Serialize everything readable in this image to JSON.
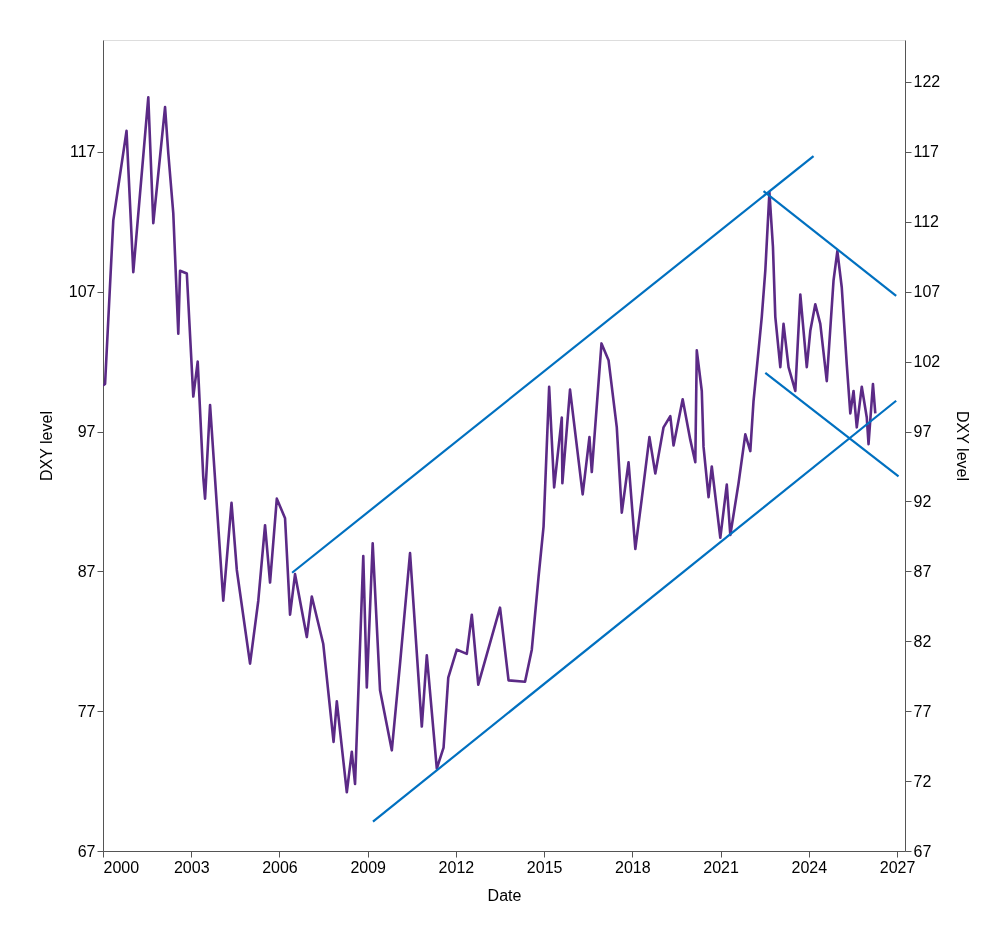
{
  "chart_data": {
    "type": "line",
    "xlabel": "Date",
    "ylabel": "DXY level",
    "y2label": "DXY level",
    "xlim": [
      2000,
      2027.27
    ],
    "xticks": [
      2000,
      2003,
      2006,
      2009,
      2012,
      2015,
      2018,
      2021,
      2024,
      2027
    ],
    "ylim": [
      67,
      125
    ],
    "yticks": [
      67,
      77,
      87,
      97,
      107,
      117
    ],
    "y2lim": [
      67,
      125
    ],
    "y2ticks": [
      67,
      72,
      77,
      82,
      87,
      92,
      97,
      102,
      107,
      112,
      117,
      122
    ],
    "grid": false,
    "legend": false,
    "marker": "none",
    "line_style": "solid",
    "series": [
      {
        "color": "#5b2a86",
        "x": [
          2000.0,
          2000.07,
          2000.35,
          2000.8,
          2001.03,
          2001.54,
          2001.71,
          2002.11,
          2002.22,
          2002.39,
          2002.56,
          2002.62,
          2002.85,
          2003.07,
          2003.22,
          2003.41,
          2003.47,
          2003.64,
          2004.09,
          2004.37,
          2004.55,
          2005.0,
          2005.28,
          2005.51,
          2005.68,
          2005.91,
          2006.19,
          2006.36,
          2006.53,
          2006.93,
          2007.1,
          2007.49,
          2007.84,
          2007.95,
          2008.29,
          2008.46,
          2008.57,
          2008.85,
          2008.97,
          2009.17,
          2009.42,
          2009.82,
          2010.1,
          2010.44,
          2010.84,
          2011.01,
          2011.35,
          2011.58,
          2011.74,
          2012.03,
          2012.37,
          2012.54,
          2012.76,
          2013.5,
          2013.79,
          2014.35,
          2014.58,
          2014.81,
          2014.98,
          2015.17,
          2015.34,
          2015.6,
          2015.62,
          2015.88,
          2016.31,
          2016.54,
          2016.62,
          2016.95,
          2017.19,
          2017.47,
          2017.64,
          2017.87,
          2018.1,
          2018.32,
          2018.58,
          2018.78,
          2019.06,
          2019.29,
          2019.4,
          2019.71,
          2019.97,
          2020.14,
          2020.19,
          2020.36,
          2020.42,
          2020.59,
          2020.7,
          2020.99,
          2021.21,
          2021.33,
          2021.61,
          2021.84,
          2022.01,
          2022.12,
          2022.29,
          2022.4,
          2022.52,
          2022.66,
          2022.78,
          2022.86,
          2023.03,
          2023.14,
          2023.31,
          2023.54,
          2023.71,
          2023.93,
          2024.05,
          2024.22,
          2024.39,
          2024.61,
          2024.84,
          2024.97,
          2025.12,
          2025.29,
          2025.41,
          2025.52,
          2025.63,
          2025.8,
          2025.97,
          2026.03,
          2026.18,
          2026.26
        ],
        "values": [
          100.3,
          100.4,
          112.1,
          118.5,
          108.4,
          120.9,
          111.9,
          120.2,
          116.9,
          112.6,
          104.0,
          108.5,
          108.3,
          99.5,
          102.0,
          93.7,
          92.2,
          98.9,
          84.9,
          91.9,
          87.1,
          80.4,
          84.9,
          90.3,
          86.2,
          92.2,
          90.8,
          83.9,
          86.8,
          82.3,
          85.2,
          81.8,
          74.8,
          77.7,
          71.2,
          74.1,
          71.8,
          88.1,
          78.7,
          89.0,
          78.5,
          74.2,
          80.4,
          88.3,
          75.9,
          81.0,
          72.9,
          74.4,
          79.4,
          81.4,
          81.1,
          83.9,
          78.9,
          84.4,
          79.2,
          79.1,
          81.4,
          86.6,
          90.2,
          100.2,
          93.0,
          98.0,
          93.3,
          100.0,
          92.5,
          96.6,
          94.1,
          103.3,
          102.1,
          97.3,
          91.2,
          94.8,
          88.6,
          92.2,
          96.6,
          94.0,
          97.3,
          98.1,
          96.0,
          99.3,
          96.4,
          94.8,
          102.8,
          99.9,
          95.9,
          92.3,
          94.5,
          89.4,
          93.2,
          89.6,
          93.3,
          96.8,
          95.6,
          99.2,
          102.8,
          105.2,
          108.5,
          114.1,
          110.2,
          105.2,
          101.6,
          104.7,
          101.6,
          99.9,
          106.8,
          101.6,
          104.2,
          106.1,
          104.7,
          100.6,
          107.8,
          109.9,
          107.3,
          101.8,
          98.3,
          99.9,
          97.3,
          100.2,
          98.0,
          96.1,
          100.4,
          98.3
        ]
      },
      {
        "color": "#0070c0",
        "axis": "y2",
        "x": [
          2006.43,
          2024.16
        ],
        "values": [
          86.9,
          116.7
        ]
      },
      {
        "color": "#0070c0",
        "axis": "y2",
        "x": [
          2009.18,
          2026.97
        ],
        "values": [
          69.1,
          99.2
        ]
      },
      {
        "color": "#0070c0",
        "axis": "y2",
        "x": [
          2022.46,
          2026.97
        ],
        "values": [
          114.2,
          106.7
        ]
      },
      {
        "color": "#0070c0",
        "axis": "y2",
        "x": [
          2022.52,
          2027.05
        ],
        "values": [
          101.2,
          93.8
        ]
      }
    ]
  }
}
